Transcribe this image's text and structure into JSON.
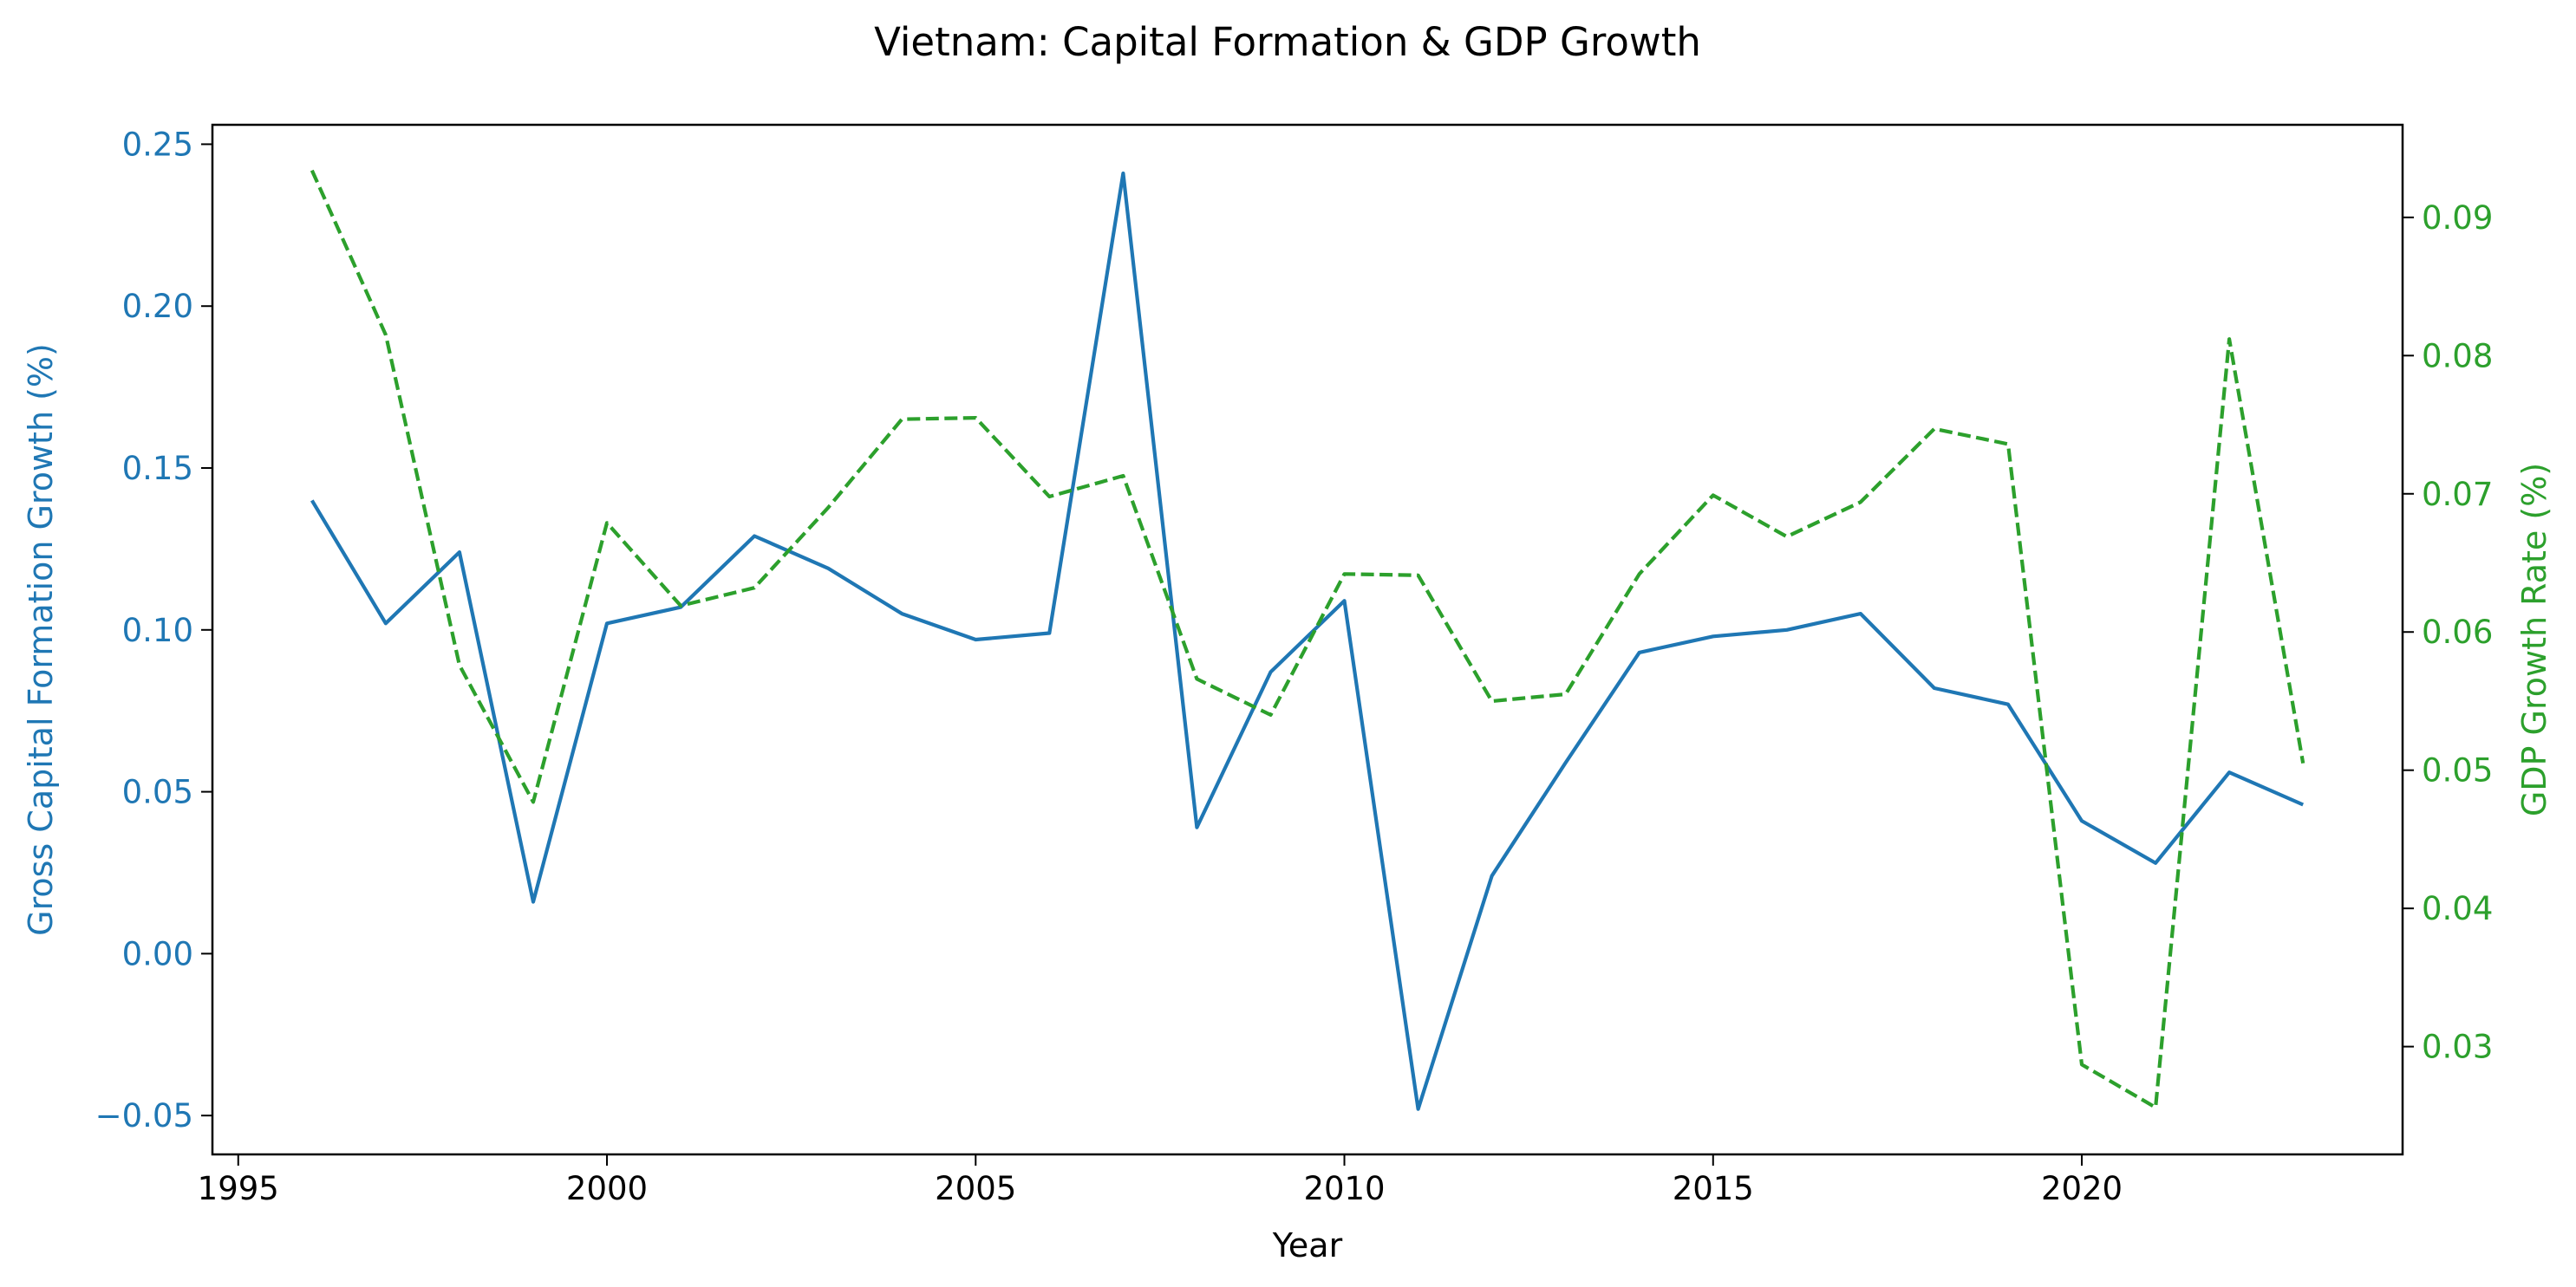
{
  "chart_data": {
    "type": "line",
    "title": "Vietnam: Capital Formation & GDP Growth",
    "xlabel": "Year",
    "ylabel": "Gross Capital Formation Growth (%)",
    "ylabel_right": "GDP Growth Rate (%)",
    "xlim": [
      1994.65,
      2024.35
    ],
    "ylim": [
      -0.062,
      0.256
    ],
    "ylim_right": [
      0.0222,
      0.0967
    ],
    "x_ticks": [
      1995,
      2000,
      2005,
      2010,
      2015,
      2020
    ],
    "y_ticks": [
      -0.05,
      0.0,
      0.05,
      0.1,
      0.15,
      0.2,
      0.25
    ],
    "y_ticks_right": [
      0.03,
      0.04,
      0.05,
      0.06,
      0.07,
      0.08,
      0.09
    ],
    "grid": false,
    "x": [
      1996,
      1997,
      1998,
      1999,
      2000,
      2001,
      2002,
      2003,
      2004,
      2005,
      2006,
      2007,
      2008,
      2009,
      2010,
      2011,
      2012,
      2013,
      2014,
      2015,
      2016,
      2017,
      2018,
      2019,
      2020,
      2021,
      2022,
      2023
    ],
    "series": [
      {
        "axis": "left",
        "color": "#1f77b4",
        "style": "solid",
        "values": [
          0.14,
          0.102,
          0.124,
          0.016,
          0.102,
          0.107,
          0.129,
          0.119,
          0.105,
          0.097,
          0.099,
          0.241,
          0.039,
          0.087,
          0.109,
          -0.048,
          0.024,
          0.059,
          0.093,
          0.098,
          0.1,
          0.105,
          0.082,
          0.077,
          0.041,
          0.028,
          0.056,
          0.046
        ]
      },
      {
        "axis": "right",
        "color": "#2ca02c",
        "style": "dashed",
        "values": [
          0.0934,
          0.0815,
          0.0576,
          0.0477,
          0.0679,
          0.0619,
          0.0632,
          0.069,
          0.0754,
          0.0755,
          0.0698,
          0.0713,
          0.0566,
          0.054,
          0.0642,
          0.0641,
          0.055,
          0.0555,
          0.0642,
          0.0699,
          0.0669,
          0.0694,
          0.0747,
          0.0736,
          0.0287,
          0.0256,
          0.0812,
          0.0505
        ]
      }
    ],
    "colors": {
      "left_axis": "#1f77b4",
      "right_axis": "#2ca02c",
      "text": "#000000"
    }
  }
}
